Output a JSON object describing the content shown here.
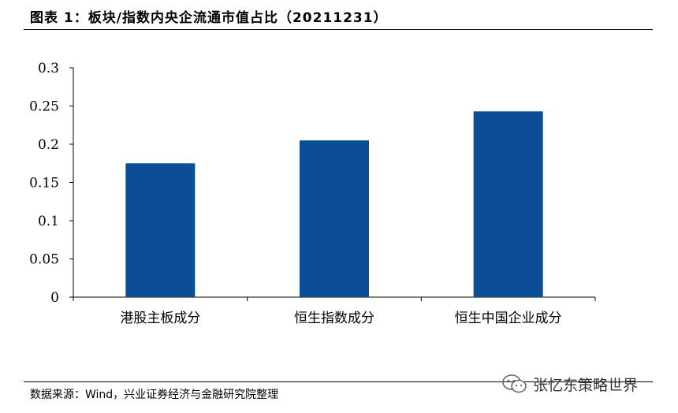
{
  "header": {
    "title": "图表 1：板块/指数内央企流通市值占比（20211231）"
  },
  "chart_data": {
    "type": "bar",
    "categories": [
      "港股主板成分",
      "恒生指数成分",
      "恒生中国企业成分"
    ],
    "values": [
      0.175,
      0.205,
      0.243
    ],
    "y_ticks": [
      "0",
      "0.05",
      "0.1",
      "0.15",
      "0.2",
      "0.25",
      "0.3"
    ],
    "ylim": [
      0,
      0.3
    ],
    "grid": false,
    "bar_color": "#0b4e96"
  },
  "footer": {
    "source": "数据来源：Wind，兴业证券经济与金融研究院整理",
    "watermark": "张忆东策略世界",
    "watermark_icon": "wechat-icon"
  }
}
